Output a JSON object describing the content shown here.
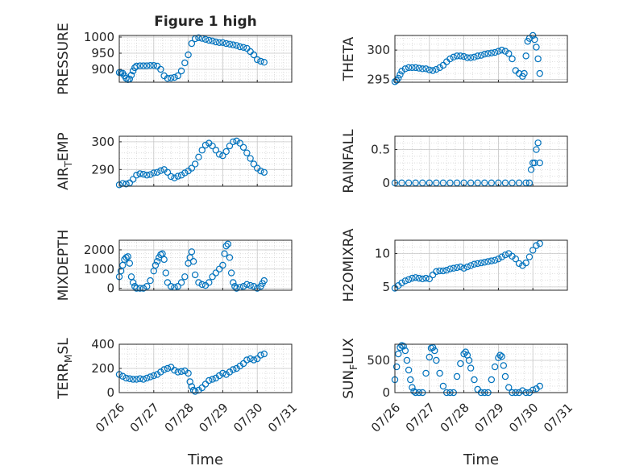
{
  "colors": {
    "marker": "#0072BD",
    "axis": "#262626",
    "grid": "#d6d6d6",
    "background": "#ffffff"
  },
  "chart_data": [
    {
      "id": "pressure",
      "type": "scatter",
      "title": "Figure 1 high",
      "ylabel": "PRESSURE",
      "ylabel_sub": "",
      "ylabel_tail": "",
      "xlim": [
        "07/26",
        "07/31"
      ],
      "ylim": [
        860,
        1005
      ],
      "yticks": [
        900,
        950,
        1000
      ],
      "xtick_labels": [],
      "xlabel": "",
      "grid": true,
      "x": [
        0,
        0.05,
        0.1,
        0.15,
        0.2,
        0.25,
        0.3,
        0.35,
        0.4,
        0.45,
        0.5,
        0.6,
        0.7,
        0.8,
        0.9,
        1.0,
        1.1,
        1.2,
        1.3,
        1.4,
        1.5,
        1.6,
        1.7,
        1.8,
        1.9,
        2.0,
        2.1,
        2.2,
        2.3,
        2.4,
        2.5,
        2.6,
        2.7,
        2.8,
        2.9,
        3.0,
        3.1,
        3.2,
        3.3,
        3.4,
        3.5,
        3.6,
        3.7,
        3.8,
        3.9,
        4.0,
        4.1,
        4.2
      ],
      "y": [
        890,
        889,
        888,
        880,
        872,
        868,
        870,
        882,
        895,
        905,
        910,
        911,
        911,
        911,
        912,
        912,
        910,
        900,
        880,
        872,
        873,
        875,
        880,
        895,
        920,
        945,
        980,
        995,
        998,
        996,
        993,
        990,
        988,
        985,
        983,
        983,
        980,
        978,
        976,
        974,
        970,
        968,
        965,
        955,
        945,
        930,
        925,
        922
      ]
    },
    {
      "id": "theta",
      "type": "scatter",
      "title": "",
      "ylabel": "THETA",
      "ylabel_sub": "",
      "ylabel_tail": "",
      "xlim": [
        "07/26",
        "07/31"
      ],
      "ylim": [
        294.5,
        302.5
      ],
      "yticks": [
        295,
        300
      ],
      "xtick_labels": [],
      "xlabel": "",
      "grid": true,
      "x": [
        0,
        0.05,
        0.1,
        0.15,
        0.2,
        0.3,
        0.4,
        0.5,
        0.6,
        0.7,
        0.8,
        0.9,
        1.0,
        1.1,
        1.2,
        1.3,
        1.4,
        1.5,
        1.6,
        1.7,
        1.8,
        1.9,
        2.0,
        2.1,
        2.2,
        2.3,
        2.4,
        2.5,
        2.6,
        2.7,
        2.8,
        2.9,
        3.0,
        3.1,
        3.2,
        3.3,
        3.4,
        3.5,
        3.6,
        3.7,
        3.75,
        3.8,
        3.85,
        3.9,
        4.0,
        4.05,
        4.1,
        4.15,
        4.2
      ],
      "y": [
        294.6,
        294.8,
        295.2,
        295.8,
        296.4,
        296.8,
        297.0,
        297.0,
        297.0,
        296.9,
        296.8,
        296.8,
        296.6,
        296.5,
        296.7,
        297.0,
        297.4,
        298.0,
        298.5,
        298.8,
        299.0,
        299.0,
        298.9,
        298.7,
        298.7,
        298.8,
        299.0,
        299.1,
        299.3,
        299.4,
        299.5,
        299.6,
        299.8,
        300.0,
        299.8,
        299.4,
        298.5,
        296.5,
        296.0,
        295.5,
        296.0,
        299.0,
        301.5,
        302.0,
        302.5,
        301.8,
        300.5,
        298.5,
        296.0
      ]
    },
    {
      "id": "airtemp",
      "type": "scatter",
      "title": "",
      "ylabel": "AIR",
      "ylabel_sub": "T",
      "ylabel_tail": "EMP",
      "xlim": [
        "07/26",
        "07/31"
      ],
      "ylim": [
        284,
        302
      ],
      "yticks": [
        290,
        300
      ],
      "xtick_labels": [],
      "xlabel": "",
      "grid": true,
      "x": [
        0,
        0.1,
        0.2,
        0.3,
        0.4,
        0.5,
        0.6,
        0.7,
        0.8,
        0.9,
        1.0,
        1.1,
        1.2,
        1.3,
        1.4,
        1.5,
        1.6,
        1.7,
        1.8,
        1.9,
        2.0,
        2.1,
        2.2,
        2.3,
        2.4,
        2.5,
        2.6,
        2.7,
        2.8,
        2.9,
        3.0,
        3.1,
        3.2,
        3.3,
        3.4,
        3.5,
        3.6,
        3.7,
        3.8,
        3.9,
        4.0,
        4.1,
        4.2
      ],
      "y": [
        284.5,
        285.0,
        284.8,
        285.2,
        286.5,
        288.0,
        288.5,
        288.3,
        288.0,
        288.2,
        288.8,
        289.0,
        289.6,
        290.0,
        289.0,
        287.5,
        287.0,
        287.6,
        288.0,
        288.8,
        289.5,
        290.5,
        292.0,
        294.5,
        297.0,
        298.8,
        299.5,
        298.5,
        297.0,
        295.5,
        295.0,
        296.5,
        298.5,
        300.0,
        300.3,
        299.5,
        298.0,
        296.0,
        294.0,
        292.0,
        290.5,
        289.5,
        289.0
      ]
    },
    {
      "id": "rainfall",
      "type": "scatter",
      "title": "",
      "ylabel": "RAINFALL",
      "ylabel_sub": "",
      "ylabel_tail": "",
      "xlim": [
        "07/26",
        "07/31"
      ],
      "ylim": [
        -0.05,
        0.7
      ],
      "yticks": [
        0,
        0.5
      ],
      "xtick_labels": [],
      "xlabel": "",
      "grid": true,
      "x": [
        0,
        0.2,
        0.4,
        0.6,
        0.8,
        1.0,
        1.2,
        1.4,
        1.6,
        1.8,
        2.0,
        2.2,
        2.4,
        2.6,
        2.8,
        3.0,
        3.2,
        3.4,
        3.6,
        3.8,
        3.9,
        3.95,
        4.0,
        4.05,
        4.1,
        4.15,
        4.2
      ],
      "y": [
        0,
        0,
        0,
        0,
        0,
        0,
        0,
        0,
        0,
        0,
        0,
        0,
        0,
        0,
        0,
        0,
        0,
        0,
        0,
        0,
        0,
        0.2,
        0.3,
        0.3,
        0.5,
        0.6,
        0.3
      ]
    },
    {
      "id": "mixdepth",
      "type": "scatter",
      "title": "",
      "ylabel": "MIXDEPTH",
      "ylabel_sub": "",
      "ylabel_tail": "",
      "xlim": [
        "07/26",
        "07/31"
      ],
      "ylim": [
        -100,
        2500
      ],
      "yticks": [
        0,
        1000,
        2000
      ],
      "xtick_labels": [],
      "xlabel": "",
      "grid": true,
      "x": [
        0,
        0.05,
        0.1,
        0.15,
        0.2,
        0.25,
        0.3,
        0.35,
        0.4,
        0.45,
        0.5,
        0.6,
        0.7,
        0.8,
        0.9,
        1.0,
        1.05,
        1.1,
        1.15,
        1.2,
        1.25,
        1.3,
        1.35,
        1.4,
        1.5,
        1.6,
        1.7,
        1.8,
        1.9,
        2.0,
        2.05,
        2.1,
        2.15,
        2.2,
        2.3,
        2.4,
        2.5,
        2.6,
        2.7,
        2.8,
        2.9,
        3.0,
        3.05,
        3.1,
        3.15,
        3.2,
        3.25,
        3.3,
        3.35,
        3.4,
        3.5,
        3.6,
        3.7,
        3.8,
        3.9,
        4.0,
        4.1,
        4.15,
        4.2
      ],
      "y": [
        600,
        900,
        1200,
        1500,
        1600,
        1650,
        1300,
        600,
        300,
        100,
        0,
        0,
        0,
        100,
        400,
        900,
        1200,
        1400,
        1600,
        1750,
        1800,
        1500,
        800,
        300,
        100,
        50,
        100,
        300,
        600,
        1300,
        1600,
        1900,
        1400,
        700,
        300,
        200,
        150,
        300,
        600,
        800,
        1000,
        1200,
        1800,
        2200,
        2300,
        1600,
        800,
        300,
        100,
        0,
        50,
        100,
        200,
        150,
        100,
        0,
        100,
        250,
        400
      ]
    },
    {
      "id": "h2omixra",
      "type": "scatter",
      "title": "",
      "ylabel": "H2OMIXRA",
      "ylabel_sub": "",
      "ylabel_tail": "",
      "xlim": [
        "07/26",
        "07/31"
      ],
      "ylim": [
        4.5,
        12
      ],
      "yticks": [
        5,
        10
      ],
      "xtick_labels": [],
      "xlabel": "",
      "grid": true,
      "x": [
        0,
        0.1,
        0.2,
        0.3,
        0.4,
        0.5,
        0.6,
        0.7,
        0.8,
        0.9,
        1.0,
        1.1,
        1.2,
        1.3,
        1.4,
        1.5,
        1.6,
        1.7,
        1.8,
        1.9,
        2.0,
        2.1,
        2.2,
        2.3,
        2.4,
        2.5,
        2.6,
        2.7,
        2.8,
        2.9,
        3.0,
        3.1,
        3.2,
        3.3,
        3.4,
        3.5,
        3.6,
        3.7,
        3.8,
        3.9,
        4.0,
        4.1,
        4.2
      ],
      "y": [
        4.8,
        5.2,
        5.6,
        5.9,
        6.1,
        6.3,
        6.4,
        6.3,
        6.2,
        6.3,
        6.2,
        6.8,
        7.3,
        7.4,
        7.4,
        7.5,
        7.7,
        7.8,
        7.9,
        8.0,
        7.8,
        8.0,
        8.2,
        8.4,
        8.5,
        8.6,
        8.7,
        8.8,
        8.9,
        9.0,
        9.2,
        9.5,
        9.8,
        10.0,
        9.6,
        9.2,
        8.5,
        8.2,
        8.6,
        9.5,
        10.5,
        11.2,
        11.5
      ]
    },
    {
      "id": "terrmsl",
      "type": "scatter",
      "title": "",
      "ylabel": "TERR",
      "ylabel_sub": "M",
      "ylabel_tail": "SL",
      "xlim": [
        "07/26",
        "07/31"
      ],
      "ylim": [
        0,
        400
      ],
      "yticks": [
        0,
        200,
        400
      ],
      "xtick_labels": [
        "07/26",
        "07/27",
        "07/28",
        "07/29",
        "07/30",
        "07/31"
      ],
      "xlabel": "Time",
      "grid": true,
      "x": [
        0,
        0.1,
        0.2,
        0.3,
        0.4,
        0.5,
        0.6,
        0.7,
        0.8,
        0.9,
        1.0,
        1.1,
        1.2,
        1.3,
        1.4,
        1.5,
        1.6,
        1.7,
        1.8,
        1.9,
        2.0,
        2.05,
        2.1,
        2.15,
        2.2,
        2.3,
        2.4,
        2.5,
        2.6,
        2.7,
        2.8,
        2.9,
        3.0,
        3.1,
        3.2,
        3.3,
        3.4,
        3.5,
        3.6,
        3.7,
        3.8,
        3.9,
        4.0,
        4.1,
        4.2
      ],
      "y": [
        150,
        135,
        120,
        115,
        110,
        110,
        115,
        110,
        120,
        130,
        140,
        150,
        170,
        190,
        200,
        210,
        185,
        170,
        175,
        180,
        160,
        90,
        50,
        20,
        10,
        20,
        40,
        70,
        100,
        110,
        120,
        140,
        160,
        150,
        170,
        190,
        200,
        220,
        240,
        270,
        280,
        270,
        280,
        310,
        320
      ]
    },
    {
      "id": "sunflux",
      "type": "scatter",
      "title": "",
      "ylabel": "SUN",
      "ylabel_sub": "F",
      "ylabel_tail": "LUX",
      "xlim": [
        "07/26",
        "07/31"
      ],
      "ylim": [
        0,
        750
      ],
      "yticks": [
        0,
        500
      ],
      "xtick_labels": [
        "07/26",
        "07/27",
        "07/28",
        "07/29",
        "07/30",
        "07/31"
      ],
      "xlabel": "Time",
      "grid": true,
      "x": [
        0,
        0.05,
        0.1,
        0.15,
        0.2,
        0.25,
        0.3,
        0.35,
        0.4,
        0.45,
        0.5,
        0.55,
        0.6,
        0.7,
        0.8,
        0.9,
        1.0,
        1.05,
        1.1,
        1.15,
        1.2,
        1.3,
        1.4,
        1.5,
        1.6,
        1.7,
        1.8,
        1.9,
        2.0,
        2.05,
        2.1,
        2.15,
        2.2,
        2.3,
        2.4,
        2.5,
        2.6,
        2.7,
        2.8,
        2.9,
        3.0,
        3.05,
        3.1,
        3.15,
        3.2,
        3.3,
        3.4,
        3.5,
        3.6,
        3.7,
        3.8,
        3.9,
        4.0,
        4.1,
        4.2
      ],
      "y": [
        200,
        400,
        600,
        700,
        730,
        720,
        650,
        500,
        350,
        200,
        80,
        20,
        0,
        0,
        0,
        300,
        550,
        690,
        700,
        650,
        500,
        300,
        100,
        0,
        0,
        0,
        250,
        450,
        600,
        630,
        580,
        500,
        380,
        200,
        50,
        0,
        0,
        0,
        200,
        400,
        540,
        580,
        560,
        420,
        250,
        80,
        0,
        0,
        0,
        30,
        0,
        0,
        40,
        60,
        100
      ]
    }
  ]
}
